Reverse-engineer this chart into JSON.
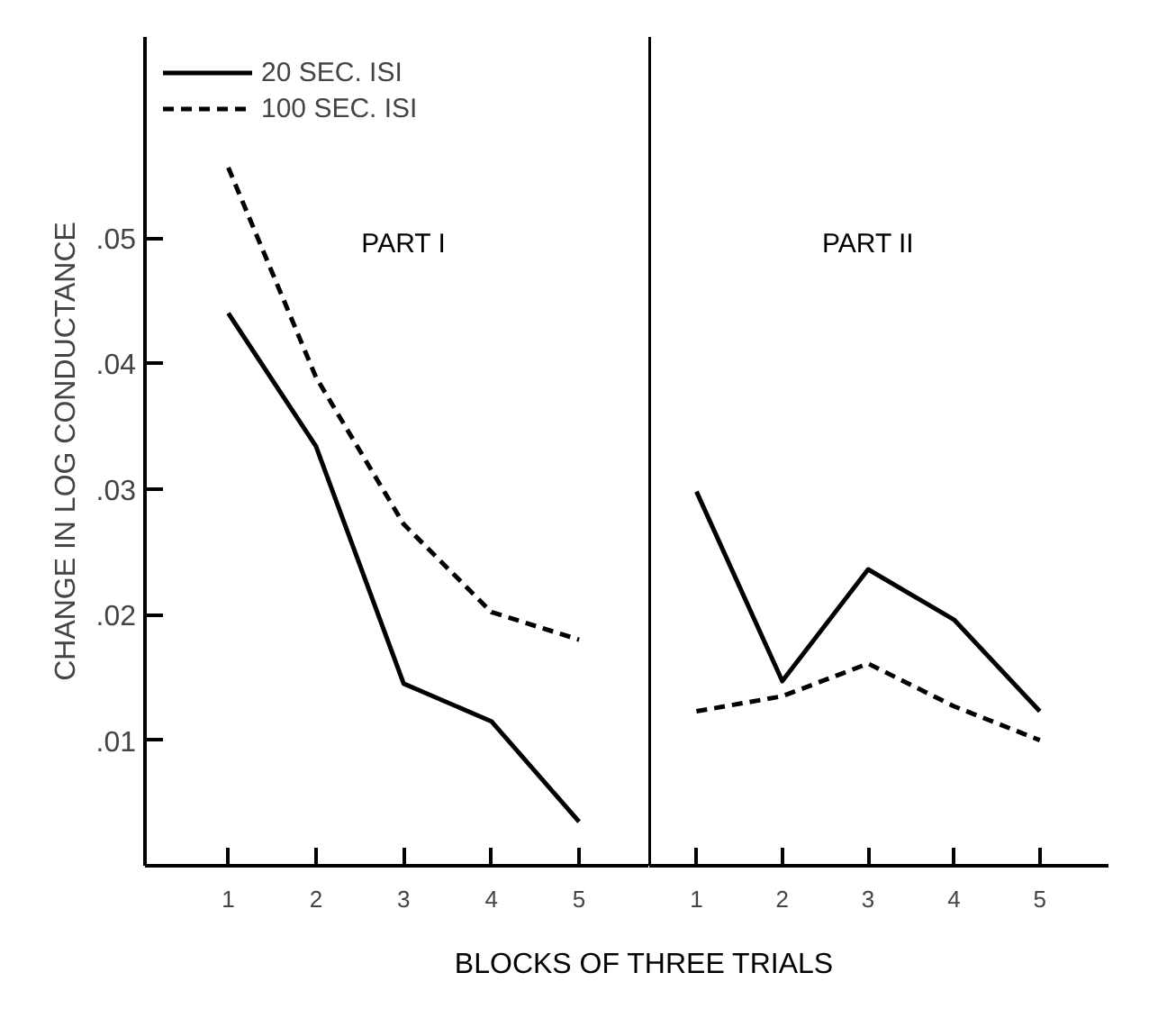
{
  "chart_data": [
    {
      "type": "line",
      "title": "PART I",
      "ylabel": "CHANGE IN LOG CONDUCTANCE",
      "xlabel": "BLOCKS OF THREE TRIALS",
      "categories": [
        "1",
        "2",
        "3",
        "4",
        "5"
      ],
      "ylim": [
        0,
        0.066
      ],
      "yticks": [
        {
          "value": 0.01,
          "label": ".01"
        },
        {
          "value": 0.02,
          "label": ".02"
        },
        {
          "value": 0.03,
          "label": ".03"
        },
        {
          "value": 0.04,
          "label": ".04"
        },
        {
          "value": 0.05,
          "label": ".05"
        }
      ],
      "legend": "top left",
      "series": [
        {
          "name": "20 SEC. ISI",
          "color": "#000000",
          "line_style": "solid",
          "values": [
            0.044,
            0.0334,
            0.0145,
            0.0115,
            0.0035
          ]
        },
        {
          "name": "100 SEC. ISI",
          "color": "#000000",
          "line_style": "dashed",
          "values": [
            0.0556,
            0.0389,
            0.0272,
            0.0202,
            0.018
          ]
        }
      ]
    },
    {
      "type": "line",
      "title": "PART II",
      "tick_labels": "x",
      "categories": [
        "1",
        "2",
        "3",
        "4",
        "5"
      ],
      "ylim": [
        0,
        0.066
      ],
      "yticks": [
        {
          "value": 0.01,
          "label": null
        },
        {
          "value": 0.02,
          "label": null
        },
        {
          "value": 0.03,
          "label": null
        },
        {
          "value": 0.04,
          "label": null
        },
        {
          "value": 0.05,
          "label": null
        }
      ],
      "series": [
        {
          "color": "#000000",
          "line_style": "solid",
          "values": [
            0.0298,
            0.0147,
            0.0236,
            0.0196,
            0.0123
          ]
        },
        {
          "color": "#000000",
          "line_style": "dashed",
          "values": [
            0.0123,
            0.0135,
            0.0161,
            0.0127,
            0.01
          ]
        }
      ]
    }
  ]
}
